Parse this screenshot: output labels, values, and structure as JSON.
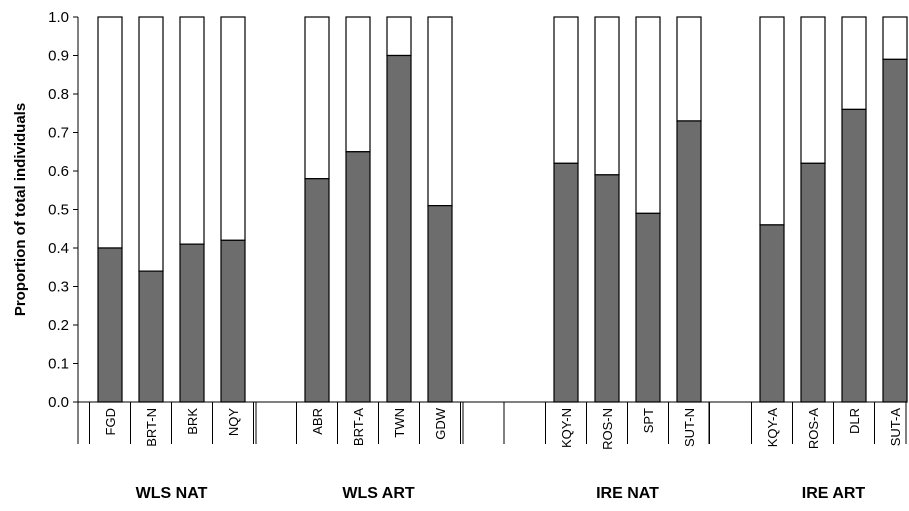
{
  "chart_data": {
    "type": "bar",
    "stacked": true,
    "title": "",
    "xlabel": "",
    "ylabel": "Proportion of total individuals",
    "ylim": [
      0,
      1.0
    ],
    "yticks": [
      "0.0",
      "0.1",
      "0.2",
      "0.3",
      "0.4",
      "0.5",
      "0.6",
      "0.7",
      "0.8",
      "0.9",
      "1.0"
    ],
    "grid": false,
    "legend": "none",
    "colors": {
      "lower": "#6d6d6d",
      "upper": "#ffffff",
      "stroke": "#000000"
    },
    "groups": [
      {
        "label": "WLS NAT",
        "categories": [
          "FGD",
          "BRT-N",
          "BRK",
          "NQY"
        ],
        "values": [
          0.4,
          0.34,
          0.41,
          0.42
        ]
      },
      {
        "label": "WLS ART",
        "categories": [
          "ABR",
          "BRT-A",
          "TWN",
          "GDW"
        ],
        "values": [
          0.58,
          0.65,
          0.9,
          0.51
        ]
      },
      {
        "label": "IRE NAT",
        "categories": [
          "KQY-N",
          "ROS-N",
          "SPT",
          "SUT-N"
        ],
        "values": [
          0.62,
          0.59,
          0.49,
          0.73
        ]
      },
      {
        "label": "IRE ART",
        "categories": [
          "KQY-A",
          "ROS-A",
          "DLR",
          "SUT-A"
        ],
        "values": [
          0.46,
          0.62,
          0.76,
          0.89
        ]
      }
    ]
  }
}
